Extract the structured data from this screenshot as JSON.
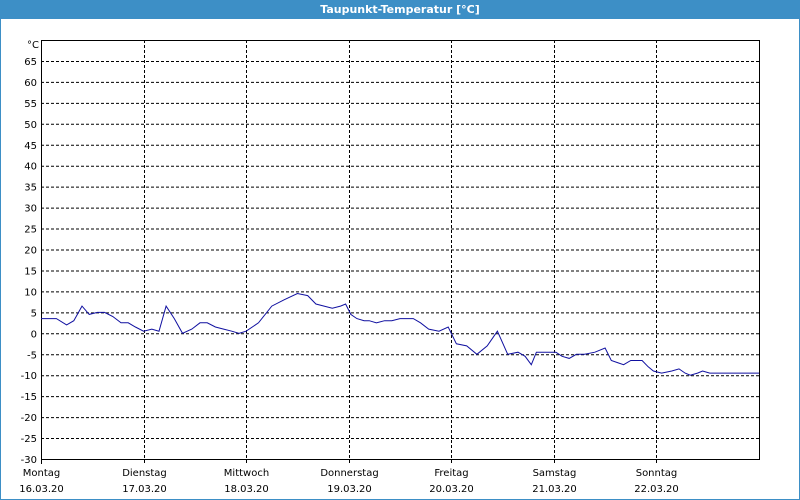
{
  "window": {
    "title": "Taupunkt-Temperatur [°C]"
  },
  "colors": {
    "titlebar": "#3d8fc6",
    "line": "#1010a0",
    "grid": "#000000"
  },
  "chart_data": {
    "type": "line",
    "title": "Taupunkt-Temperatur [°C]",
    "unit": "°C",
    "ylim": [
      -30,
      70
    ],
    "yticks": [
      -30,
      -25,
      -20,
      -15,
      -10,
      -5,
      0,
      5,
      10,
      15,
      20,
      25,
      30,
      35,
      40,
      45,
      50,
      55,
      60,
      65
    ],
    "xlim": [
      0,
      7
    ],
    "grid": true,
    "days": [
      {
        "weekday": "Montag",
        "date": "16.03.20"
      },
      {
        "weekday": "Dienstag",
        "date": "17.03.20"
      },
      {
        "weekday": "Mittwoch",
        "date": "18.03.20"
      },
      {
        "weekday": "Donnerstag",
        "date": "19.03.20"
      },
      {
        "weekday": "Freitag",
        "date": "20.03.20"
      },
      {
        "weekday": "Samstag",
        "date": "21.03.20"
      },
      {
        "weekday": "Sonntag",
        "date": "22.03.20"
      }
    ],
    "series": [
      {
        "x": [
          0,
          0.15,
          0.25,
          0.32,
          0.4,
          0.47,
          0.55,
          0.62,
          0.7,
          0.78,
          0.85,
          0.92,
          1.0,
          1.08,
          1.15,
          1.22,
          1.3,
          1.38,
          1.47,
          1.55,
          1.62,
          1.7,
          1.78,
          1.86,
          1.93,
          2.0,
          2.12,
          2.25,
          2.37,
          2.5,
          2.6,
          2.68,
          2.76,
          2.84,
          2.92,
          2.97,
          3.02,
          3.08,
          3.15,
          3.2,
          3.27,
          3.35,
          3.42,
          3.5,
          3.57,
          3.63,
          3.7,
          3.78,
          3.88,
          3.97,
          4.05,
          4.15,
          4.25,
          4.35,
          4.45,
          4.55,
          4.65,
          4.72,
          4.78,
          4.83,
          4.9,
          4.95,
          5.02,
          5.08,
          5.15,
          5.22,
          5.3,
          5.4,
          5.5,
          5.56,
          5.62,
          5.68,
          5.75,
          5.8,
          5.86,
          5.92,
          5.97,
          6.05,
          6.15,
          6.22,
          6.28,
          6.33,
          6.4,
          6.45,
          6.52,
          6.58,
          6.65,
          6.72,
          6.8,
          6.88,
          6.95,
          7.0
        ],
        "values": [
          3.5,
          3.5,
          2.0,
          3.0,
          6.5,
          4.5,
          5.0,
          5.0,
          4.0,
          2.5,
          2.5,
          1.5,
          0.5,
          1.0,
          0.5,
          6.5,
          3.5,
          0.0,
          1.0,
          2.5,
          2.5,
          1.5,
          1.0,
          0.5,
          0.0,
          0.5,
          2.5,
          6.5,
          8.0,
          9.5,
          9.0,
          7.0,
          6.5,
          6.0,
          6.5,
          7.0,
          4.5,
          3.5,
          3.0,
          3.0,
          2.5,
          3.0,
          3.0,
          3.5,
          3.5,
          3.5,
          2.5,
          1.0,
          0.5,
          1.5,
          -2.5,
          -3.0,
          -5.0,
          -3.0,
          0.5,
          -5.0,
          -4.5,
          -5.5,
          -7.5,
          -4.5,
          -4.5,
          -4.5,
          -4.5,
          -5.5,
          -6.0,
          -5.0,
          -5.0,
          -4.5,
          -3.5,
          -6.5,
          -7.0,
          -7.5,
          -6.5,
          -6.5,
          -6.5,
          -8.0,
          -9.0,
          -9.5,
          -9.0,
          -8.5,
          -9.5,
          -10.0,
          -9.5,
          -9.0,
          -9.5,
          -9.5,
          -9.5,
          -9.5,
          -9.5,
          -9.5,
          -9.5,
          -9.5
        ]
      }
    ]
  }
}
